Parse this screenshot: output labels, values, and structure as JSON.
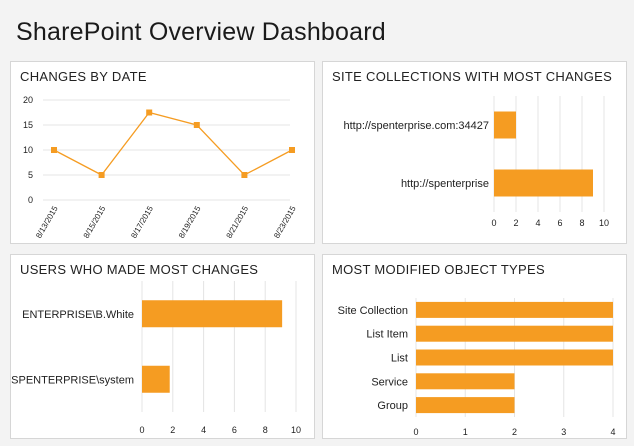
{
  "page": {
    "title": "SharePoint Overview Dashboard"
  },
  "colors": {
    "accent": "#f59c22",
    "grid": "#e4e4e4",
    "panel_border": "#d6d6d6"
  },
  "chart_data": [
    {
      "id": "changes-by-date",
      "type": "line",
      "title": "CHANGES BY DATE",
      "categories": [
        "8/13/2015",
        "8/15/2015",
        "8/17/2015",
        "8/19/2015",
        "8/21/2015",
        "8/23/2015"
      ],
      "values": [
        10,
        5,
        17.5,
        15,
        5,
        10
      ],
      "ylim": [
        0,
        20
      ],
      "yticks": [
        "0",
        "5",
        "10",
        "15",
        "20"
      ],
      "grid": true
    },
    {
      "id": "site-collections",
      "type": "bar",
      "orientation": "horizontal",
      "title": "SITE COLLECTIONS WITH MOST CHANGES",
      "categories": [
        "http://spenterprise.com:34427",
        "http://spenterprise"
      ],
      "values": [
        2,
        9
      ],
      "xlim": [
        0,
        10
      ],
      "xticks": [
        "0",
        "2",
        "4",
        "6",
        "8",
        "10"
      ],
      "grid": true
    },
    {
      "id": "users",
      "type": "bar",
      "orientation": "horizontal",
      "title": "USERS WHO MADE MOST CHANGES",
      "categories": [
        "ENTERPRISE\\B.White",
        "SPENTERPRISE\\system"
      ],
      "values": [
        9.1,
        1.8
      ],
      "xlim": [
        0,
        10
      ],
      "xticks": [
        "0",
        "2",
        "4",
        "6",
        "8",
        "10"
      ],
      "grid": true
    },
    {
      "id": "object-types",
      "type": "bar",
      "orientation": "horizontal",
      "title": "MOST MODIFIED OBJECT TYPES",
      "categories": [
        "Site Collection",
        "List Item",
        "List",
        "Service",
        "Group"
      ],
      "values": [
        4,
        4,
        4,
        2,
        2
      ],
      "xlim": [
        0,
        4
      ],
      "xticks": [
        "0",
        "1",
        "2",
        "3",
        "4"
      ],
      "grid": true
    }
  ]
}
